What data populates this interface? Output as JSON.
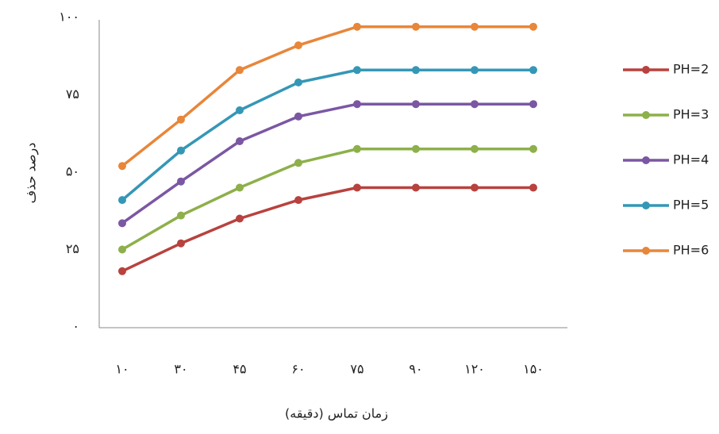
{
  "chart_data": {
    "type": "line",
    "x_label": "زمان تماس (دقیقه)",
    "y_label": "درصد حذف",
    "categories": [
      "۱۰",
      "۳۰",
      "۴۵",
      "۶۰",
      "۷۵",
      "۹۰",
      "۱۲۰",
      "۱۵۰"
    ],
    "series": [
      {
        "name": "PH=2",
        "color": "#b8423e",
        "values": [
          18,
          27,
          35,
          41,
          45,
          45,
          45,
          45
        ]
      },
      {
        "name": "PH=3",
        "color": "#8db04a",
        "values": [
          25,
          36,
          45,
          53,
          57.5,
          57.5,
          57.5,
          57.5
        ]
      },
      {
        "name": "PH=4",
        "color": "#7b57a3",
        "values": [
          33.5,
          47,
          60,
          68,
          72,
          72,
          72,
          72
        ]
      },
      {
        "name": "PH=5",
        "color": "#3597b6",
        "values": [
          41,
          57,
          70,
          79,
          83,
          83,
          83,
          83
        ]
      },
      {
        "name": "PH=6",
        "color": "#e8863a",
        "values": [
          52,
          67,
          83,
          91,
          97,
          97,
          97,
          97
        ]
      }
    ],
    "ylim": [
      0,
      100
    ],
    "yticks": [
      {
        "value": 0,
        "label": "۰"
      },
      {
        "value": 25,
        "label": "۲۵"
      },
      {
        "value": 50,
        "label": "۵۰"
      },
      {
        "value": 75,
        "label": "۷۵"
      },
      {
        "value": 100,
        "label": "۱۰۰"
      }
    ],
    "grid": false,
    "legend": "right"
  }
}
